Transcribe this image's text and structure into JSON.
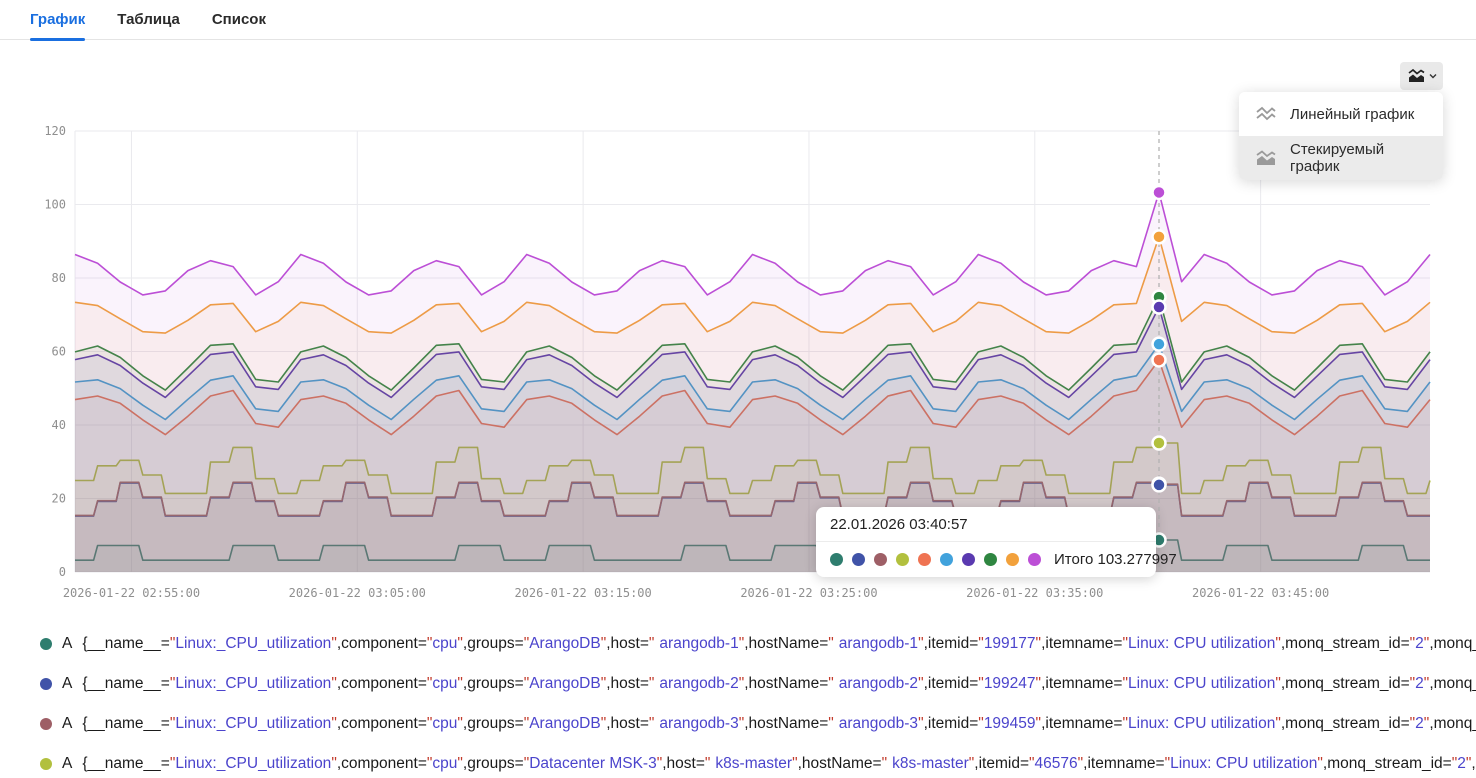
{
  "tabs": {
    "items": [
      {
        "label": "График",
        "active": true
      },
      {
        "label": "Таблица",
        "active": false
      },
      {
        "label": "Список",
        "active": false
      }
    ]
  },
  "toolbar": {
    "chart_type_button_icon": "stacked-area-icon"
  },
  "menu": {
    "items": [
      {
        "label": "Линейный график",
        "icon": "line-chart-icon",
        "selected": false
      },
      {
        "label": "Стекируемый график",
        "icon": "stacked-chart-icon",
        "selected": true
      }
    ]
  },
  "tooltip": {
    "time": "22.01.2026 03:40:57",
    "total_label": "Итого",
    "total_value": "103.277997"
  },
  "chart_data": {
    "type": "area",
    "stacked": true,
    "grid": true,
    "ylim": [
      0,
      120
    ],
    "y_ticks": [
      0,
      20,
      40,
      60,
      80,
      100,
      120
    ],
    "x_ticks": [
      "2026-01-22 02:55:00",
      "2026-01-22 03:05:00",
      "2026-01-22 03:15:00",
      "2026-01-22 03:25:00",
      "2026-01-22 03:35:00",
      "2026-01-22 03:45:00"
    ],
    "cursor": {
      "time": "22.01.2026 03:40:57",
      "total": 103.277997,
      "minute_index": 48
    },
    "series": [
      {
        "name": "arangodb-1",
        "color": "#2e7d6e",
        "interp": "step",
        "phase": 0,
        "cycle": [
          3.2,
          7.2,
          7.2,
          3.2,
          3.2,
          3.2,
          3.2,
          7.2,
          7.2,
          3.2
        ],
        "spike": 8.7,
        "cursor_cumulative": 8.7
      },
      {
        "name": "arangodb-2",
        "color": "#4053a8",
        "interp": "step",
        "phase": 5,
        "cycle": [
          12,
          17,
          17,
          12,
          12,
          12,
          12,
          17,
          17,
          12
        ],
        "spike": 15.0,
        "cursor_cumulative": 23.7
      },
      {
        "name": "arangodb-3",
        "color": "#9e5f66",
        "interp": "step",
        "phase": 5,
        "cycle": [
          0.2,
          0.2,
          0.2,
          0.2,
          0.2,
          0.2,
          0.2,
          0.2,
          0.2,
          0.2
        ],
        "spike": 0.2,
        "cursor_cumulative": 23.9
      },
      {
        "name": "k8s-master",
        "color": "#b2c03e",
        "interp": "step",
        "phase": 1,
        "cycle": [
          6,
          9.5,
          9.5,
          6,
          6,
          6,
          6,
          9.5,
          9.5,
          6
        ],
        "spike": 11.2,
        "cursor_cumulative": 35.1
      },
      {
        "name": "",
        "color": "#ef7352",
        "interp": "linear",
        "phase": 2,
        "cycle": [
          15,
          18,
          22,
          19,
          15.5,
          15,
          16,
          21,
          18,
          15.5
        ],
        "spike": 22.6,
        "cursor_cumulative": 57.7
      },
      {
        "name": "",
        "color": "#41a2dc",
        "interp": "linear",
        "phase": 2,
        "cycle": [
          4,
          4.3,
          4.8,
          4.4,
          4,
          4,
          4.1,
          4.6,
          4.3,
          4
        ],
        "spike": 4.3,
        "cursor_cumulative": 62.0
      },
      {
        "name": "",
        "color": "#5a3ab0",
        "interp": "linear",
        "phase": 6,
        "cycle": [
          6,
          6.3,
          7,
          6.5,
          6,
          6,
          6.1,
          6.8,
          6.3,
          6
        ],
        "spike": 10.1,
        "cursor_cumulative": 72.1
      },
      {
        "name": "",
        "color": "#2f8641",
        "interp": "linear",
        "phase": 6,
        "cycle": [
          2,
          2.2,
          2.5,
          2.2,
          2,
          2,
          2.1,
          2.4,
          2.2,
          2
        ],
        "spike": 2.7,
        "cursor_cumulative": 74.8
      },
      {
        "name": "",
        "color": "#f2a13c",
        "interp": "linear",
        "phase": 3,
        "cycle": [
          11,
          13,
          16.5,
          13.5,
          11,
          10.5,
          12,
          15.5,
          13,
          11
        ],
        "spike": 16.4,
        "cursor_cumulative": 91.2
      },
      {
        "name": "",
        "color": "#bc4fd6",
        "interp": "linear",
        "phase": 7,
        "cycle": [
          10,
          11.5,
          13.5,
          12,
          10,
          10,
          10.8,
          13,
          11.5,
          10
        ],
        "spike": 12.1,
        "cursor_cumulative": 103.277997
      }
    ]
  },
  "legend": {
    "query_letter": "A",
    "rows": [
      {
        "color": "#2e7d6e",
        "segments": [
          {
            "key": "__name__",
            "value": "Linux:_CPU_utilization"
          },
          {
            "key": "component",
            "value": "cpu"
          },
          {
            "key": "groups",
            "value": "ArangoDB"
          },
          {
            "key": "host",
            "value": "arangodb-1",
            "redacted": true
          },
          {
            "key": "hostName",
            "value": "arangodb-1",
            "redacted": true
          },
          {
            "key": "itemid",
            "value": "199177"
          },
          {
            "key": "itemname",
            "value": "Linux: CPU utilization"
          },
          {
            "key": "monq_stream_id",
            "value": "2"
          },
          {
            "key": "monq_userspace_id",
            "value": "",
            "truncated": true
          }
        ]
      },
      {
        "color": "#4053a8",
        "segments": [
          {
            "key": "__name__",
            "value": "Linux:_CPU_utilization"
          },
          {
            "key": "component",
            "value": "cpu"
          },
          {
            "key": "groups",
            "value": "ArangoDB"
          },
          {
            "key": "host",
            "value": "arangodb-2",
            "redacted": true
          },
          {
            "key": "hostName",
            "value": "arangodb-2",
            "redacted": true
          },
          {
            "key": "itemid",
            "value": "199247"
          },
          {
            "key": "itemname",
            "value": "Linux: CPU utilization"
          },
          {
            "key": "monq_stream_id",
            "value": "2"
          },
          {
            "key": "monq_userspace_id",
            "value": "",
            "truncated": true
          }
        ]
      },
      {
        "color": "#9e5f66",
        "segments": [
          {
            "key": "__name__",
            "value": "Linux:_CPU_utilization"
          },
          {
            "key": "component",
            "value": "cpu"
          },
          {
            "key": "groups",
            "value": "ArangoDB"
          },
          {
            "key": "host",
            "value": "arangodb-3",
            "redacted": true
          },
          {
            "key": "hostName",
            "value": "arangodb-3",
            "redacted": true
          },
          {
            "key": "itemid",
            "value": "199459"
          },
          {
            "key": "itemname",
            "value": "Linux: CPU utilization"
          },
          {
            "key": "monq_stream_id",
            "value": "2"
          },
          {
            "key": "monq_userspace_id",
            "value": "",
            "truncated": true
          }
        ]
      },
      {
        "color": "#b2c03e",
        "segments": [
          {
            "key": "__name__",
            "value": "Linux:_CPU_utilization"
          },
          {
            "key": "component",
            "value": "cpu"
          },
          {
            "key": "groups",
            "value": "Datacenter MSK-3"
          },
          {
            "key": "host",
            "value": "k8s-master",
            "redacted": true
          },
          {
            "key": "hostName",
            "value": "k8s-master",
            "redacted": true
          },
          {
            "key": "itemid",
            "value": "46576"
          },
          {
            "key": "itemname",
            "value": "Linux: CPU utilization"
          },
          {
            "key": "monq_stream_id",
            "value": "2"
          },
          {
            "key": "monq_userspace_id",
            "value": "",
            "truncated": true
          }
        ]
      }
    ]
  }
}
